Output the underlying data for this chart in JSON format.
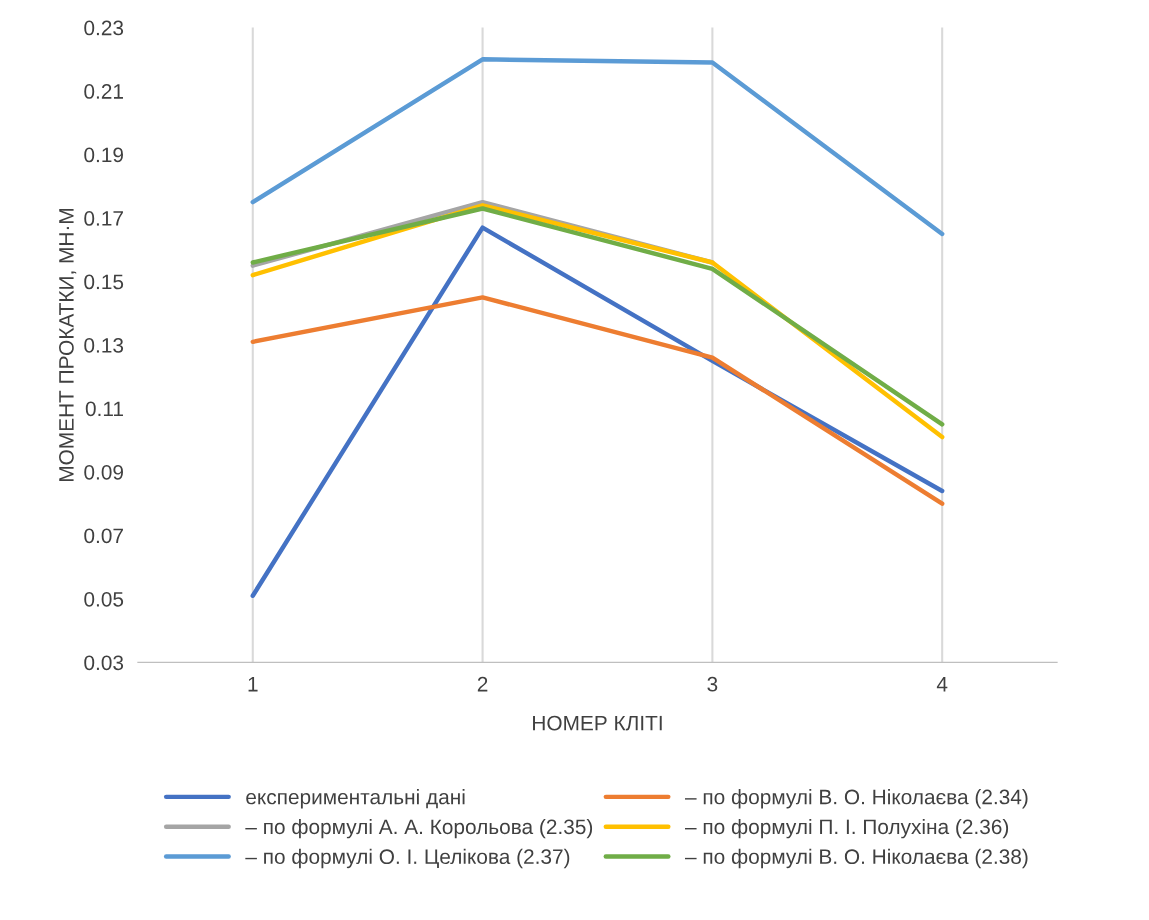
{
  "chart_data": {
    "type": "line",
    "xlabel": "НОМЕР КЛІТІ",
    "ylabel": "МОМЕНТ ПРОКАТКИ, МН·М",
    "categories": [
      "1",
      "2",
      "3",
      "4"
    ],
    "series": [
      {
        "name": "експериментальні дані",
        "color": "#4472c4",
        "values": [
          0.051,
          0.167,
          0.125,
          0.084
        ]
      },
      {
        "name": "– по формулі В. О. Ніколаєва (2.34)",
        "color": "#ed7d31",
        "values": [
          0.131,
          0.145,
          0.126,
          0.08
        ]
      },
      {
        "name": "– по формулі А. А. Корольова (2.35)",
        "color": "#a5a5a5",
        "values": [
          0.155,
          0.175,
          0.156,
          null
        ]
      },
      {
        "name": "– по формулі П. І. Полухіна (2.36)",
        "color": "#ffc000",
        "values": [
          0.152,
          0.174,
          0.156,
          0.101
        ]
      },
      {
        "name": "– по формулі О. І. Целікова (2.37)",
        "color": "#5b9bd5",
        "values": [
          0.175,
          0.22,
          0.219,
          0.165
        ]
      },
      {
        "name": "– по формулі В. О. Ніколаєва (2.38)",
        "color": "#70ad47",
        "values": [
          0.156,
          0.173,
          0.154,
          0.105
        ]
      }
    ],
    "ylim": [
      0.03,
      0.23
    ],
    "yticks": [
      {
        "value": 0.03,
        "label": "0.03"
      },
      {
        "value": 0.05,
        "label": "0.05"
      },
      {
        "value": 0.07,
        "label": "0.07"
      },
      {
        "value": 0.09,
        "label": "0.09"
      },
      {
        "value": 0.11,
        "label": "0.11"
      },
      {
        "value": 0.13,
        "label": "0.13"
      },
      {
        "value": 0.15,
        "label": "0.15"
      },
      {
        "value": 0.17,
        "label": "0.17"
      },
      {
        "value": 0.19,
        "label": "0.19"
      },
      {
        "value": 0.21,
        "label": "0.21"
      },
      {
        "value": 0.23,
        "label": "0.23"
      }
    ],
    "grid": "x",
    "legend": "bottom",
    "marker": "none",
    "line_style": "solid"
  }
}
